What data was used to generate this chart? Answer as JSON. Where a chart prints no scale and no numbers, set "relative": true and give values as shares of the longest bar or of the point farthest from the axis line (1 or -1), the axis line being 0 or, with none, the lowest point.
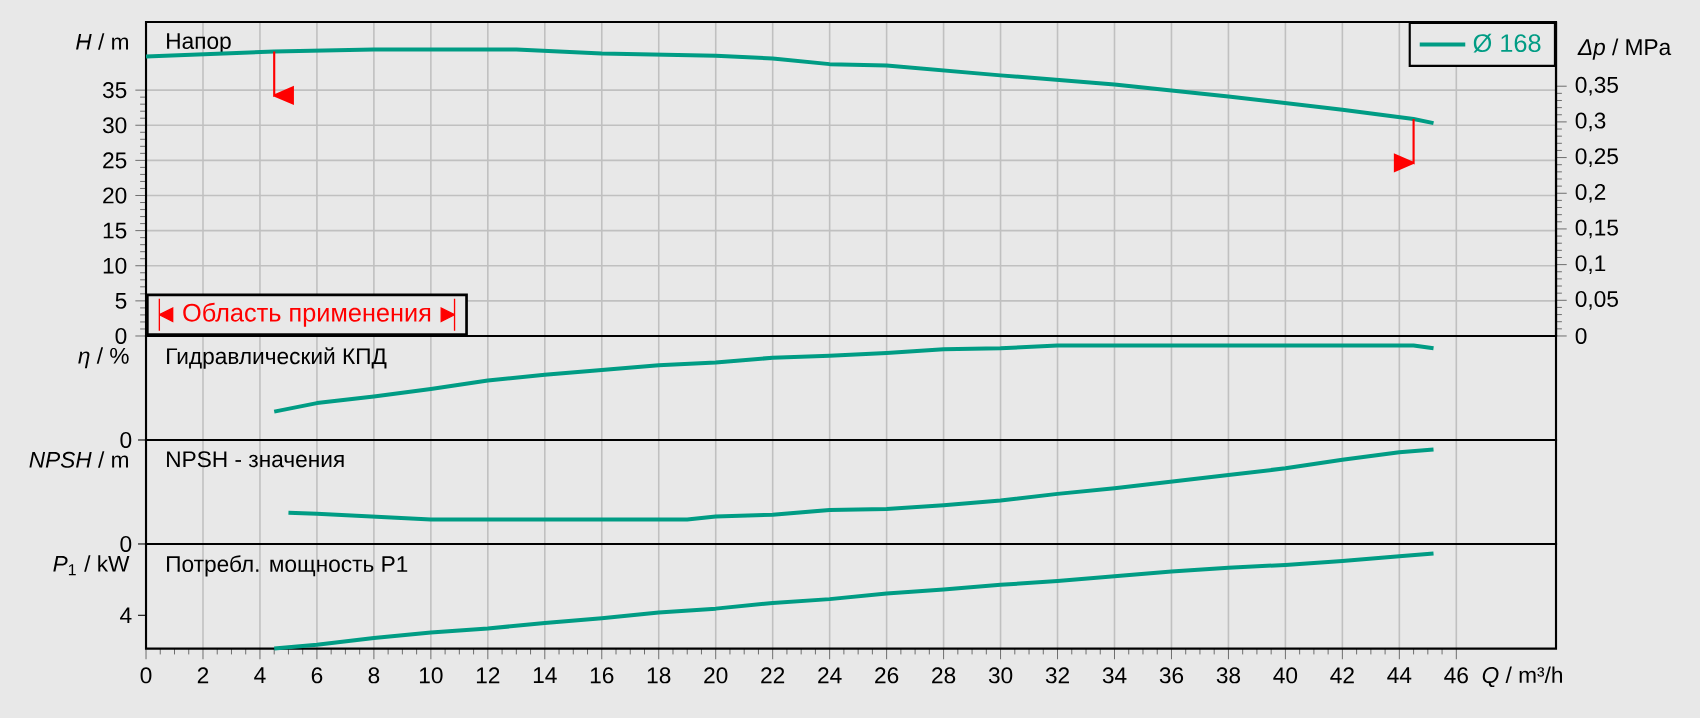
{
  "chart_data": [
    {
      "type": "line",
      "title": "Напор",
      "ylabel": "*H* / m",
      "y2label": "*Δp* / MPa",
      "x": [
        0,
        4.5,
        8,
        13,
        16,
        20,
        22,
        24,
        26,
        30,
        34,
        38,
        42,
        44.5,
        45.2
      ],
      "series": [
        {
          "name": "Ø 168",
          "color": "#009c84",
          "values": [
            39.8,
            40.5,
            40.8,
            40.8,
            40.2,
            39.9,
            39.5,
            38.7,
            38.5,
            37.1,
            35.8,
            34.1,
            32.2,
            30.9,
            30.3
          ]
        }
      ],
      "xlim": [
        0,
        49.5
      ],
      "xticks": [
        0,
        2,
        4,
        6,
        8,
        10,
        12,
        14,
        16,
        18,
        20,
        22,
        24,
        26,
        28,
        30,
        32,
        34,
        36,
        38,
        40,
        42,
        44,
        46
      ],
      "ylim": [
        0,
        44.7
      ],
      "yticks": [
        0,
        5,
        10,
        15,
        20,
        25,
        30,
        35
      ],
      "y2lim": [
        0,
        0.44
      ],
      "y2ticks": [
        0,
        {
          "value": 0.05,
          "label": "0,05"
        },
        {
          "value": 0.1,
          "label": "0,1"
        },
        {
          "value": 0.15,
          "label": "0,15"
        },
        {
          "value": 0.2,
          "label": "0,2"
        },
        {
          "value": 0.25,
          "label": "0,25"
        },
        {
          "value": 0.3,
          "label": "0,3"
        },
        {
          "value": 0.35,
          "label": "0,35"
        }
      ],
      "grid": true,
      "legend": "top right",
      "tick_labels": "y",
      "ref_lines": [
        {
          "axis": "x",
          "value": 4.5,
          "color": "#ff0000"
        },
        {
          "axis": "x",
          "value": 44.5,
          "color": "#ff0000"
        }
      ],
      "annotations": [
        "Область применения"
      ]
    },
    {
      "type": "line",
      "title": "Гидравлический КПД",
      "ylabel": "*η* / %",
      "relative": true,
      "x": [
        4.5,
        6,
        8,
        10,
        12,
        14,
        16,
        18,
        20,
        22,
        24,
        26,
        28,
        30,
        32,
        44.5,
        45.2
      ],
      "series": [
        {
          "color": "#009c84",
          "values": [
            0.3,
            0.39,
            0.46,
            0.54,
            0.63,
            0.69,
            0.74,
            0.79,
            0.82,
            0.87,
            0.89,
            0.92,
            0.96,
            0.97,
            1.0,
            1.0,
            0.97
          ]
        }
      ],
      "xlim": [
        0,
        49.5
      ],
      "xticks": [
        0,
        2,
        4,
        6,
        8,
        10,
        12,
        14,
        16,
        18,
        20,
        22,
        24,
        26,
        28,
        30,
        32,
        34,
        36,
        38,
        40,
        42,
        44,
        46
      ],
      "grid": "x",
      "tick_labels": false,
      "annotations": [
        "0"
      ]
    },
    {
      "type": "line",
      "title": "NPSH - значения",
      "ylabel": "*NPSH* / m",
      "relative": true,
      "x": [
        5,
        6,
        8,
        10,
        19,
        20,
        22,
        24,
        26,
        28,
        30,
        32,
        34,
        36,
        38,
        40,
        42,
        44,
        45.2
      ],
      "series": [
        {
          "color": "#009c84",
          "values": [
            0.33,
            0.32,
            0.29,
            0.26,
            0.26,
            0.29,
            0.31,
            0.36,
            0.37,
            0.41,
            0.46,
            0.53,
            0.59,
            0.66,
            0.73,
            0.8,
            0.89,
            0.97,
            1.0
          ]
        }
      ],
      "xlim": [
        0,
        49.5
      ],
      "xticks": [
        0,
        2,
        4,
        6,
        8,
        10,
        12,
        14,
        16,
        18,
        20,
        22,
        24,
        26,
        28,
        30,
        32,
        34,
        36,
        38,
        40,
        42,
        44,
        46
      ],
      "grid": "x",
      "tick_labels": false,
      "annotations": [
        "0"
      ]
    },
    {
      "type": "line",
      "title": "Потребл. мощность P1",
      "ylabel": "*P*$_{1}$ / kW",
      "xlabel": "*Q* / m³/h",
      "relative": true,
      "x": [
        4.5,
        6,
        8,
        10,
        12,
        14,
        16,
        18,
        20,
        22,
        24,
        26,
        28,
        30,
        32,
        34,
        36,
        38,
        40,
        42,
        44,
        45.2
      ],
      "series": [
        {
          "color": "#009c84",
          "values": [
            0,
            0.04,
            0.11,
            0.17,
            0.21,
            0.27,
            0.32,
            0.38,
            0.42,
            0.48,
            0.52,
            0.58,
            0.62,
            0.67,
            0.71,
            0.76,
            0.81,
            0.85,
            0.88,
            0.92,
            0.97,
            1.0
          ]
        }
      ],
      "xlim": [
        0,
        49.5
      ],
      "xticks": [
        0,
        2,
        4,
        6,
        8,
        10,
        12,
        14,
        16,
        18,
        20,
        22,
        24,
        26,
        28,
        30,
        32,
        34,
        36,
        38,
        40,
        42,
        44,
        46
      ],
      "grid": "x",
      "tick_labels": "x",
      "annotations": [
        "4"
      ]
    }
  ]
}
